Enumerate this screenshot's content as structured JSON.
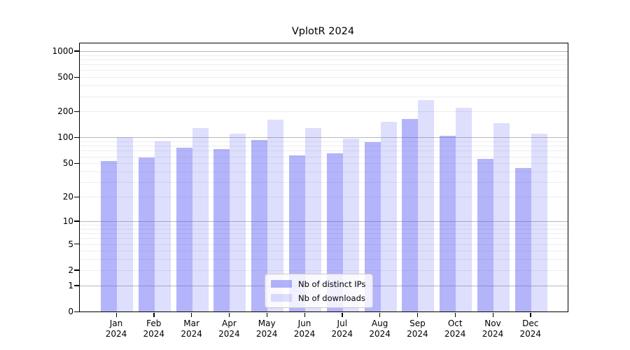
{
  "title": "VplotR 2024",
  "chart_data": {
    "type": "bar",
    "scale": "log1p",
    "title": "VplotR 2024",
    "xlabel": "",
    "ylabel": "",
    "categories": [
      "Jan 2024",
      "Feb 2024",
      "Mar 2024",
      "Apr 2024",
      "May 2024",
      "Jun 2024",
      "Jul 2024",
      "Aug 2024",
      "Sep 2024",
      "Oct 2024",
      "Nov 2024",
      "Dec 2024"
    ],
    "series": [
      {
        "name": "Nb of distinct IPs",
        "values": [
          53,
          59,
          76,
          74,
          93,
          62,
          66,
          89,
          165,
          104,
          56,
          44
        ]
      },
      {
        "name": "Nb of downloads",
        "values": [
          101,
          91,
          128,
          110,
          160,
          128,
          97,
          151,
          270,
          220,
          146,
          110
        ]
      }
    ],
    "y_ticks": [
      0,
      1,
      2,
      5,
      10,
      20,
      50,
      100,
      200,
      500,
      1000
    ],
    "major_gridlines": [
      1,
      10,
      100,
      1000
    ],
    "ylim": [
      0,
      1230
    ],
    "grid": true,
    "legend_position": "bottom-center",
    "colors": {
      "series1": "rgba(88,88,246,0.45)",
      "series2": "rgba(88,88,246,0.20)",
      "major_grid": "#b9b9b9",
      "minor_grid": "#ededed"
    }
  }
}
